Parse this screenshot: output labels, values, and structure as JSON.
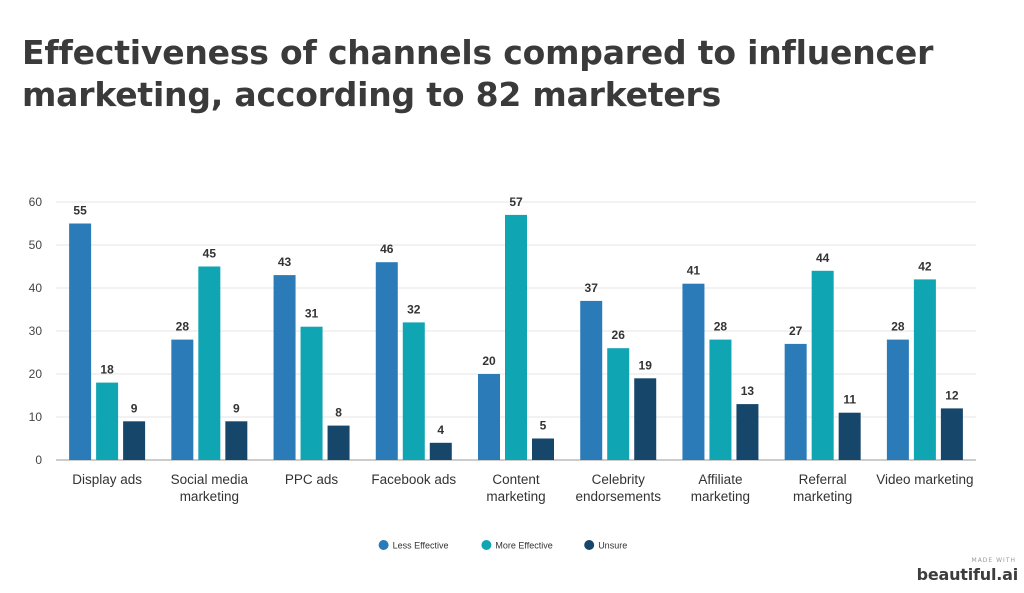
{
  "title_lines": [
    "Effectiveness of channels compared to influencer",
    "marketing, according to 82 marketers"
  ],
  "watermark": {
    "made_with": "MADE WITH",
    "brand": "beautiful.ai"
  },
  "chart_data": {
    "type": "bar",
    "title": "Effectiveness of channels compared to influencer marketing, according to 82 marketers",
    "xlabel": "",
    "ylabel": "",
    "ylim": [
      0,
      60
    ],
    "yticks": [
      0,
      10,
      20,
      30,
      40,
      50,
      60
    ],
    "grid": true,
    "legend_position": "bottom-center",
    "categories": [
      [
        "Display ads"
      ],
      [
        "Social media",
        "marketing"
      ],
      [
        "PPC ads"
      ],
      [
        "Facebook ads"
      ],
      [
        "Content",
        "marketing"
      ],
      [
        "Celebrity",
        "endorsements"
      ],
      [
        "Affiliate",
        "marketing"
      ],
      [
        "Referral",
        "marketing"
      ],
      [
        "Video marketing"
      ]
    ],
    "series": [
      {
        "name": "Less Effective",
        "color": "#2b7bb9",
        "values": [
          55,
          28,
          43,
          46,
          20,
          37,
          41,
          27,
          28
        ]
      },
      {
        "name": "More Effective",
        "color": "#0fa5b3",
        "values": [
          18,
          45,
          31,
          32,
          57,
          26,
          28,
          44,
          42
        ]
      },
      {
        "name": "Unsure",
        "color": "#17466b",
        "values": [
          9,
          9,
          8,
          4,
          5,
          19,
          13,
          11,
          12
        ]
      }
    ]
  }
}
